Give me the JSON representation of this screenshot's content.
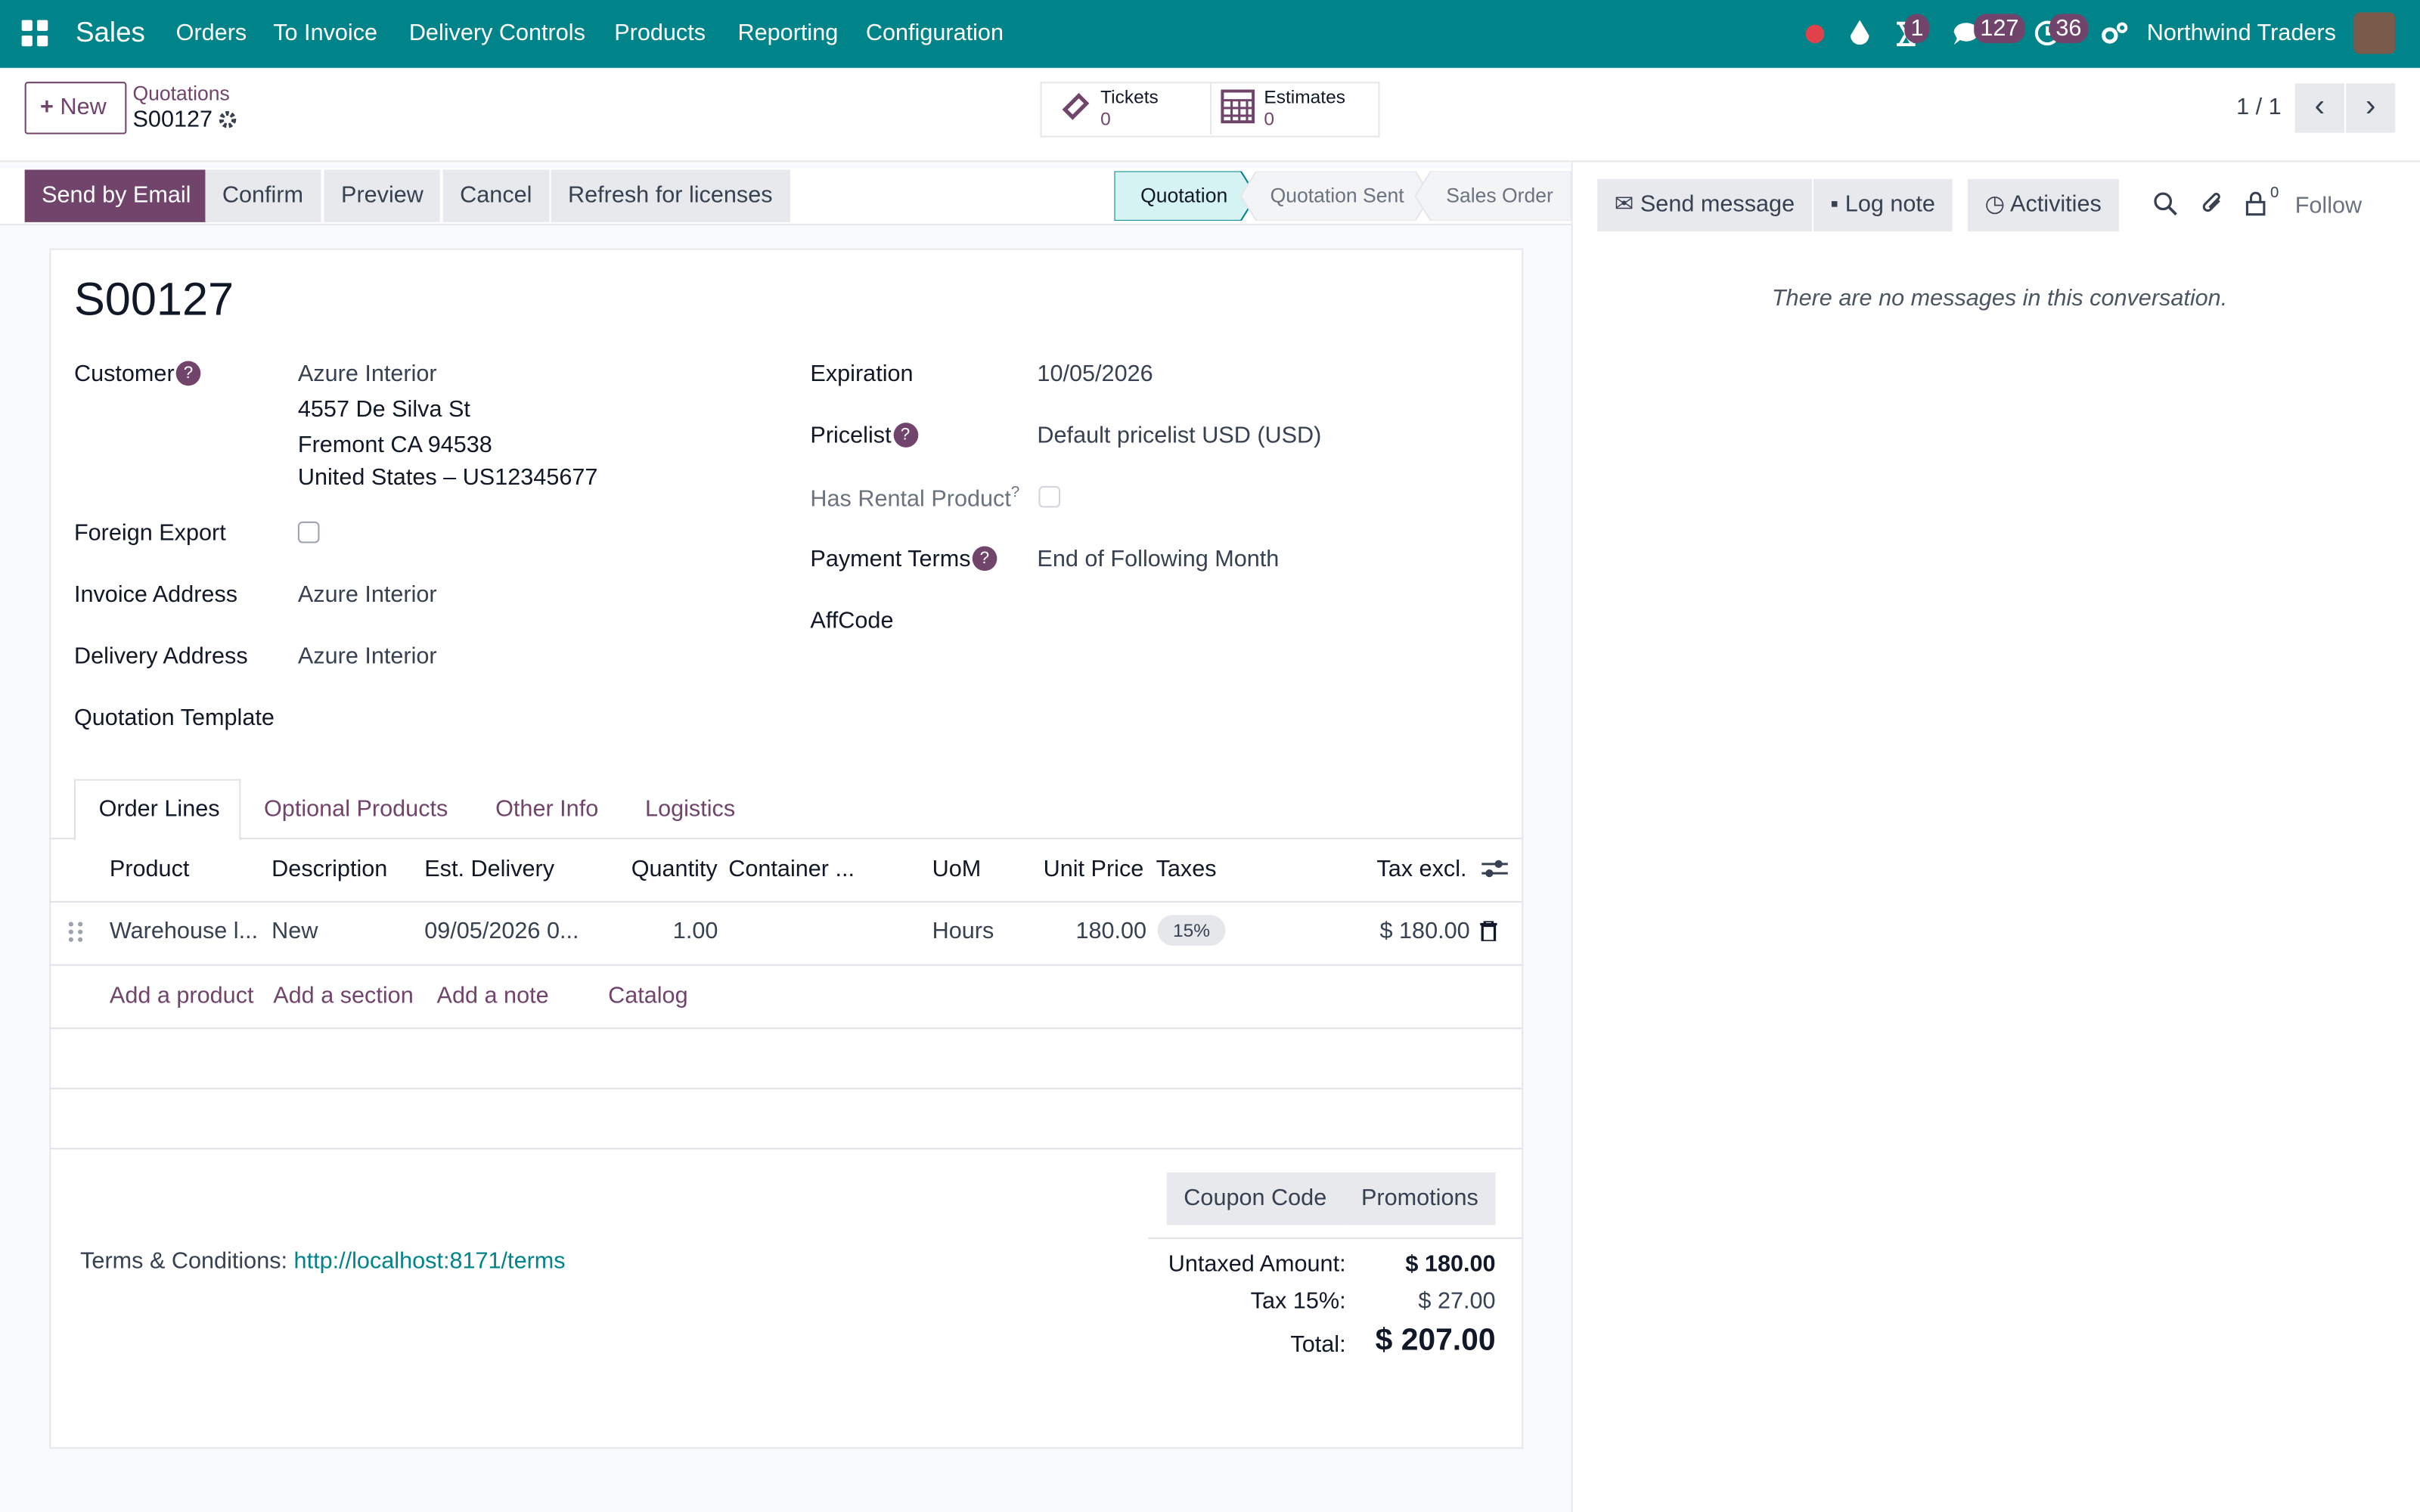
{
  "navbar": {
    "app": "Sales",
    "menu": [
      "Orders",
      "To Invoice",
      "Delivery Controls",
      "Products",
      "Reporting",
      "Configuration"
    ],
    "badges": {
      "activities": "1",
      "messages": "127",
      "clock": "36"
    },
    "company": "Northwind Traders"
  },
  "control_panel": {
    "new": "New",
    "breadcrumb": "Quotations",
    "record": "S00127",
    "smart_buttons": [
      {
        "label": "Tickets",
        "count": "0"
      },
      {
        "label": "Estimates",
        "count": "0"
      }
    ],
    "pager": "1 / 1"
  },
  "actions": [
    "Send by Email",
    "Confirm",
    "Preview",
    "Cancel",
    "Refresh for licenses"
  ],
  "statusbar": [
    "Quotation",
    "Quotation Sent",
    "Sales Order"
  ],
  "chatter": {
    "send_message": "Send message",
    "log_note": "Log note",
    "activities": "Activities",
    "followers": "0",
    "follow": "Follow",
    "empty": "There are no messages in this conversation."
  },
  "form": {
    "name": "S00127",
    "help_marker": "?",
    "left_fields": [
      {
        "label": "Customer",
        "value": [
          "Azure Interior",
          "4557 De Silva St",
          "Fremont CA 94538",
          "United States – US12345677"
        ]
      },
      {
        "label": "Foreign Export"
      },
      {
        "label": "Invoice Address",
        "value": [
          "Azure Interior"
        ]
      },
      {
        "label": "Delivery Address",
        "value": [
          "Azure Interior"
        ]
      },
      {
        "label": "Quotation Template"
      }
    ],
    "right_fields": [
      {
        "label": "Expiration",
        "value": "10/05/2026"
      },
      {
        "label": "Pricelist",
        "value": "Default pricelist USD  (USD)"
      },
      {
        "label": "Has Rental Product"
      },
      {
        "label": "Payment Terms",
        "value": "End of Following Month"
      },
      {
        "label": "AffCode"
      }
    ],
    "tabs": [
      "Order Lines",
      "Optional Products",
      "Other Info",
      "Logistics"
    ],
    "columns": [
      "Product",
      "Description",
      "Est. Delivery",
      "Quantity",
      "Container ...",
      "UoM",
      "Unit Price",
      "Taxes",
      "Tax excl."
    ],
    "rows": [
      {
        "product": "Warehouse l...",
        "description": "New",
        "delivery": "09/05/2026 0...",
        "quantity": "1.00",
        "uom": "Hours",
        "price": "180.00",
        "tax": "15%",
        "subtotal": "$ 180.00"
      }
    ],
    "add_links": [
      "Add a product",
      "Add a section",
      "Add a note",
      "Catalog"
    ],
    "buttons": [
      "Coupon Code",
      "Promotions"
    ],
    "terms_label": "Terms & Conditions:",
    "terms_link": "http://localhost:8171/terms",
    "totals": [
      {
        "label": "Untaxed Amount:",
        "value": "$ 180.00"
      },
      {
        "label": "Tax 15%:",
        "value": "$ 27.00"
      },
      {
        "label": "Total:",
        "value": "$ 207.00"
      }
    ]
  }
}
